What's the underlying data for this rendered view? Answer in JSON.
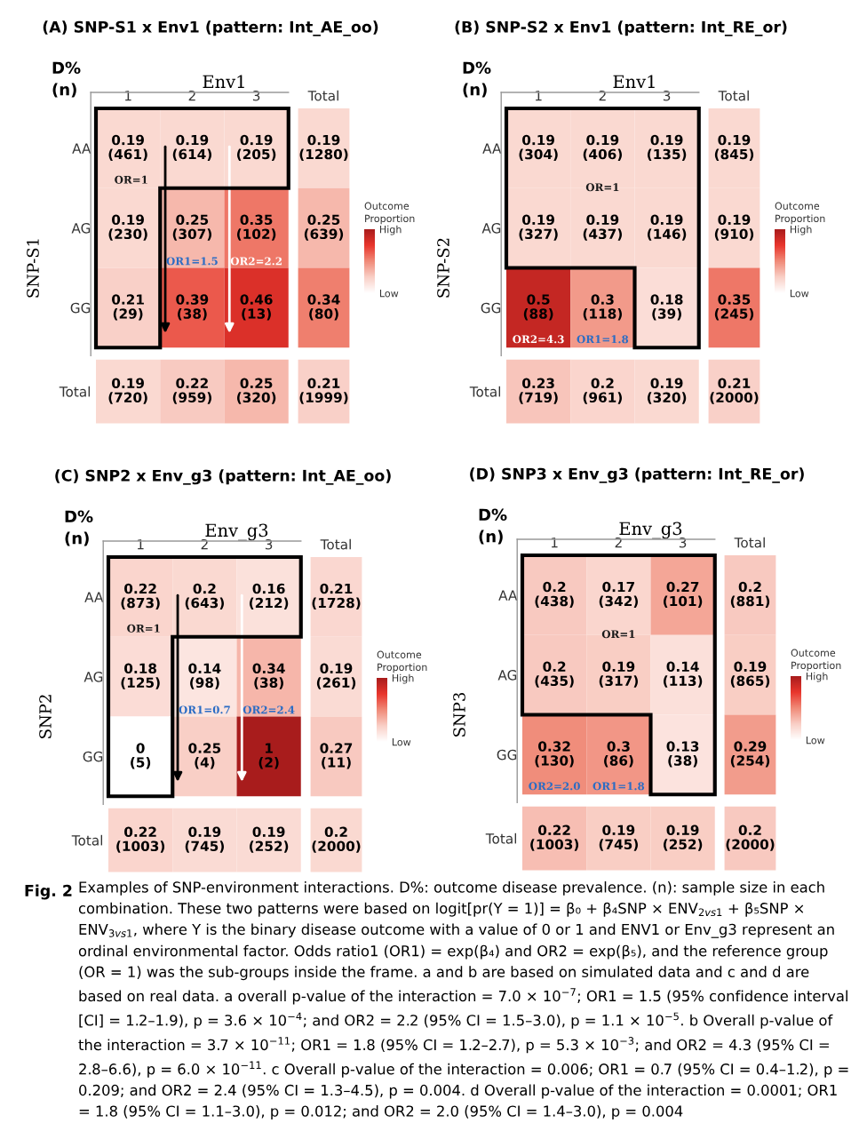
{
  "chart_data": [
    {
      "type": "heatmap",
      "title": "(A) SNP-S1 x Env1 (pattern: Int_AE_oo)",
      "xlabel": "Env1",
      "ylabel": "SNP-S1",
      "categories": [
        "1",
        "2",
        "3",
        "Total"
      ],
      "y_categories": [
        "AA",
        "AG",
        "GG",
        "Total"
      ],
      "cells": [
        [
          0.19,
          0.19,
          0.19,
          0.19
        ],
        [
          0.19,
          0.25,
          0.35,
          0.25
        ],
        [
          0.21,
          0.39,
          0.46,
          0.34
        ],
        [
          0.19,
          0.22,
          0.25,
          0.21
        ]
      ],
      "cell_labels": [
        [
          "0.19\n(461)",
          "0.19\n(614)",
          "0.19\n(205)",
          "0.19\n(1280)"
        ],
        [
          "0.19\n(230)",
          "0.25\n(307)",
          "0.35\n(102)",
          "0.25\n(639)"
        ],
        [
          "0.21\n(29)",
          "0.39\n(38)",
          "0.46\n(13)",
          "0.34\n(80)"
        ],
        [
          "0.19\n(720)",
          "0.22\n(959)",
          "0.25\n(320)",
          "0.21\n(1999)"
        ]
      ],
      "clim": [
        0.1,
        0.55
      ],
      "clabel": "Outcome\nProportion",
      "cticks": [
        {
          "value": 0.55,
          "label": "High"
        },
        {
          "value": 0.1,
          "label": "Low"
        }
      ],
      "annotations": [
        "D%\n(n)",
        "OR=1",
        "OR1=1.5",
        "OR2=2.2"
      ]
    },
    {
      "type": "heatmap",
      "title": "(B) SNP-S2 x Env1 (pattern: Int_RE_or)",
      "xlabel": "Env1",
      "ylabel": "SNP-S2",
      "categories": [
        "1",
        "2",
        "3",
        "Total"
      ],
      "y_categories": [
        "AA",
        "AG",
        "GG",
        "Total"
      ],
      "cells": [
        [
          0.19,
          0.19,
          0.19,
          0.19
        ],
        [
          0.19,
          0.19,
          0.19,
          0.19
        ],
        [
          0.5,
          0.3,
          0.18,
          0.35
        ],
        [
          0.23,
          0.2,
          0.19,
          0.21
        ]
      ],
      "cell_labels": [
        [
          "0.19\n(304)",
          "0.19\n(406)",
          "0.19\n(135)",
          "0.19\n(845)"
        ],
        [
          "0.19\n(327)",
          "0.19\n(437)",
          "0.19\n(146)",
          "0.19\n(910)"
        ],
        [
          "0.5\n(88)",
          "0.3\n(118)",
          "0.18\n(39)",
          "0.35\n(245)"
        ],
        [
          "0.23\n(719)",
          "0.2\n(961)",
          "0.19\n(320)",
          "0.21\n(2000)"
        ]
      ],
      "clim": [
        0.1,
        0.55
      ],
      "clabel": "Outcome\nProportion",
      "cticks": [
        {
          "value": 0.55,
          "label": "High"
        },
        {
          "value": 0.1,
          "label": "Low"
        }
      ],
      "annotations": [
        "D%\n(n)",
        "OR=1",
        "OR2=4.3",
        "OR1=1.8"
      ]
    },
    {
      "type": "heatmap",
      "title": "(C) SNP2 x Env_g3 (pattern: Int_AE_oo)",
      "xlabel": "Env_g3",
      "ylabel": "SNP2",
      "categories": [
        "1",
        "2",
        "3",
        "Total"
      ],
      "y_categories": [
        "AA",
        "AG",
        "GG",
        "Total"
      ],
      "cells": [
        [
          0.22,
          0.2,
          0.16,
          0.21
        ],
        [
          0.18,
          0.14,
          0.34,
          0.19
        ],
        [
          0,
          0.25,
          1,
          0.27
        ],
        [
          0.22,
          0.19,
          0.19,
          0.2
        ]
      ],
      "cell_labels": [
        [
          "0.22\n(873)",
          "0.2\n(643)",
          "0.16\n(212)",
          "0.21\n(1728)"
        ],
        [
          "0.18\n(125)",
          "0.14\n(98)",
          "0.34\n(38)",
          "0.19\n(261)"
        ],
        [
          "0\n(5)",
          "0.25\n(4)",
          "1\n(2)",
          "0.27\n(11)"
        ],
        [
          "0.22\n(1003)",
          "0.19\n(745)",
          "0.19\n(252)",
          "0.2\n(2000)"
        ]
      ],
      "clim": [
        0,
        1
      ],
      "clabel": "Outcome\nProportion",
      "cticks": [
        {
          "value": 1,
          "label": "High"
        },
        {
          "value": 0,
          "label": "Low"
        }
      ],
      "annotations": [
        "D%\n(n)",
        "OR=1",
        "OR1=0.7",
        "OR2=2.4"
      ]
    },
    {
      "type": "heatmap",
      "title": "(D) SNP3 x Env_g3 (pattern: Int_RE_or)",
      "xlabel": "Env_g3",
      "ylabel": "SNP3",
      "categories": [
        "1",
        "2",
        "3",
        "Total"
      ],
      "y_categories": [
        "AA",
        "AG",
        "GG",
        "Total"
      ],
      "cells": [
        [
          0.2,
          0.17,
          0.27,
          0.2
        ],
        [
          0.2,
          0.19,
          0.14,
          0.19
        ],
        [
          0.32,
          0.3,
          0.13,
          0.29
        ],
        [
          0.22,
          0.19,
          0.19,
          0.2
        ]
      ],
      "cell_labels": [
        [
          "0.2\n(438)",
          "0.17\n(342)",
          "0.27\n(101)",
          "0.2\n(881)"
        ],
        [
          "0.2\n(435)",
          "0.19\n(317)",
          "0.14\n(113)",
          "0.19\n(865)"
        ],
        [
          "0.32\n(130)",
          "0.3\n(86)",
          "0.13\n(38)",
          "0.29\n(254)"
        ],
        [
          "0.22\n(1003)",
          "0.19\n(745)",
          "0.19\n(252)",
          "0.2\n(2000)"
        ]
      ],
      "clim": [
        0.05,
        0.6
      ],
      "clabel": "Outcome\nProportion",
      "cticks": [
        {
          "value": 0.6,
          "label": "High"
        },
        {
          "value": 0.05,
          "label": "Low"
        }
      ],
      "annotations": [
        "D%\n(n)",
        "OR=1",
        "OR2=2.0",
        "OR1=1.8"
      ]
    },
    {
      "type": "other",
      "title": "Fig. 2",
      "annotations": [
        "Examples of SNP-environment interactions. D%: outcome disease prevalence. (n): sample size in each combination. These two patterns were based on logit[pr(Y = 1)] = β₀ + β₄SNP × ENV$_{2vs1}$ + β₅SNP × ENV$_{3vs1}$, where Y is the binary disease outcome with a value of 0 or 1 and ENV1 or Env_g3 represent an ordinal environmental factor. Odds ratio1 (OR1) = exp(β₄) and OR2 = exp(β₅), and the reference group (OR = 1) was the sub-groups inside the frame. a and b are based on simulated data and c and d are based on real data. a overall p-value of the interaction = 7.0 × 10$^{−7}$; OR1 = 1.5 (95% confidence interval [CI] = 1.2–1.9), p = 3.6 × 10$^{−4}$; and OR2 = 2.2 (95% CI = 1.5–3.0), p = 1.1 × 10$^{−5}$. b Overall p-value of the interaction = 3.7 × 10$^{−11}$; OR1 = 1.8 (95% CI = 1.2–2.7), p = 5.3 × 10$^{−3}$; and OR2 = 4.3 (95% CI = 2.8–6.6), p = 6.0 × 10$^{−11}$. c Overall p-value of the interaction = 0.006; OR1 = 0.7 (95% CI = 0.4–1.2), p = 0.209; and OR2 = 2.4 (95% CI = 1.3–4.5), p = 0.004. d Overall p-value of the interaction = 0.0001; OR1 = 1.8 (95% CI = 1.1–3.0), p = 0.012; and OR2 = 2.0 (95% CI = 1.4–3.0), p = 0.004"
      ]
    }
  ]
}
